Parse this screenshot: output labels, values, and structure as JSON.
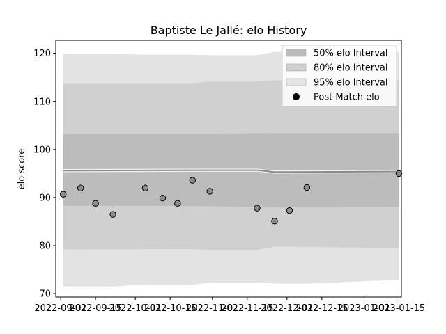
{
  "chart_data": {
    "type": "line",
    "title": "Baptiste Le Jallé: elo History",
    "xlabel": "",
    "ylabel": "elo score",
    "x_ticks": [
      "2022-09-01",
      "2022-09-15",
      "2022-10-01",
      "2022-10-15",
      "2022-11-01",
      "2022-11-15",
      "2022-12-01",
      "2022-12-15",
      "2023-01-01",
      "2023-01-15"
    ],
    "xlim": [
      "2022-08-30",
      "2023-01-16"
    ],
    "ylim": [
      69.3,
      122.7
    ],
    "y_ticks": [
      70,
      80,
      90,
      100,
      110,
      120
    ],
    "grid": false,
    "legend_position": "top-right",
    "legend": [
      "50% elo Interval",
      "80% elo Interval",
      "95% elo Interval",
      "Post Match elo"
    ],
    "colors": {
      "band_95": "#e3e3e3",
      "band_80": "#d0d0d0",
      "band_50": "#bcbcbc",
      "mean_line": "#8a8a8a",
      "points_fill": "#8c8c8c",
      "points_stroke": "#000000"
    },
    "series": [
      {
        "name": "Post Match elo",
        "x": [
          "2022-09-02",
          "2022-09-09",
          "2022-09-15",
          "2022-09-22",
          "2022-10-05",
          "2022-10-12",
          "2022-10-18",
          "2022-10-24",
          "2022-10-31",
          "2022-11-19",
          "2022-11-26",
          "2022-12-02",
          "2022-12-09",
          "2023-01-15"
        ],
        "y": [
          90.7,
          92.0,
          88.8,
          86.5,
          92.0,
          89.9,
          88.8,
          93.6,
          91.3,
          87.8,
          85.1,
          87.3,
          92.1,
          95.0
        ]
      }
    ],
    "bands": [
      {
        "name": "95% elo Interval",
        "x": [
          "2022-09-02",
          "2022-09-22",
          "2022-10-05",
          "2022-10-24",
          "2022-10-31",
          "2022-11-19",
          "2022-11-26",
          "2022-12-09",
          "2023-01-15"
        ],
        "upper": [
          119.9,
          119.9,
          119.7,
          119.7,
          119.6,
          119.6,
          120.3,
          120.3,
          120.3
        ],
        "lower": [
          71.5,
          71.5,
          71.9,
          71.9,
          72.3,
          72.3,
          72.1,
          72.1,
          72.9
        ]
      },
      {
        "name": "80% elo Interval",
        "x": [
          "2022-09-02",
          "2022-10-24",
          "2022-10-31",
          "2022-11-19",
          "2022-11-26",
          "2023-01-15"
        ],
        "upper": [
          113.8,
          113.8,
          114.1,
          114.1,
          114.4,
          114.4
        ],
        "lower": [
          79.2,
          79.3,
          79.1,
          79.1,
          79.8,
          79.5
        ]
      },
      {
        "name": "50% elo Interval",
        "x": [
          "2022-09-02",
          "2022-10-05",
          "2022-10-31",
          "2022-11-26",
          "2023-01-15"
        ],
        "upper": [
          103.2,
          103.3,
          103.3,
          103.4,
          103.4
        ],
        "lower": [
          88.3,
          88.3,
          88.2,
          88.0,
          88.1
        ]
      }
    ],
    "mean_line": {
      "x": [
        "2022-09-02",
        "2022-10-31",
        "2022-11-19",
        "2022-11-26",
        "2023-01-15"
      ],
      "y": [
        95.6,
        95.7,
        95.7,
        95.3,
        95.4
      ]
    }
  }
}
